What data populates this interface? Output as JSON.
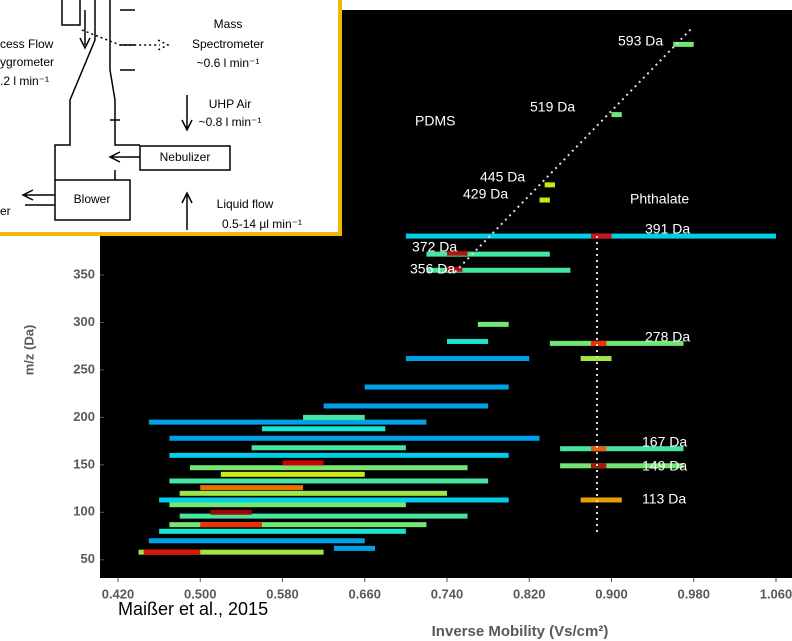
{
  "chart_data": {
    "type": "heatmap",
    "x_label": "Inverse Mobility (Vs/cm²)",
    "y_label": "m/z (Da)",
    "xlim": [
      0.42,
      1.06
    ],
    "xticks": [
      {
        "value": 0.42,
        "label": "0.420"
      },
      {
        "value": 0.5,
        "label": "0.500"
      },
      {
        "value": 0.58,
        "label": "0.580"
      },
      {
        "value": 0.66,
        "label": "0.660"
      },
      {
        "value": 0.74,
        "label": "0.740"
      },
      {
        "value": 0.82,
        "label": "0.820"
      },
      {
        "value": 0.9,
        "label": "0.900"
      },
      {
        "value": 0.98,
        "label": "0.980"
      },
      {
        "value": 1.06,
        "label": "1.060"
      }
    ],
    "ylim": [
      35,
      625
    ],
    "yticks": [
      50,
      100,
      150,
      200,
      250,
      300,
      350
    ],
    "streaks": [
      {
        "x0": 0.44,
        "x1": 0.62,
        "mz": 58,
        "intensity": 0.55
      },
      {
        "x0": 0.445,
        "x1": 0.5,
        "mz": 58,
        "intensity": 0.9
      },
      {
        "x0": 0.63,
        "x1": 0.67,
        "mz": 62,
        "intensity": 0.3
      },
      {
        "x0": 0.45,
        "x1": 0.66,
        "mz": 70,
        "intensity": 0.3
      },
      {
        "x0": 0.46,
        "x1": 0.7,
        "mz": 80,
        "intensity": 0.4
      },
      {
        "x0": 0.47,
        "x1": 0.72,
        "mz": 87,
        "intensity": 0.5
      },
      {
        "x0": 0.5,
        "x1": 0.56,
        "mz": 87,
        "intensity": 0.85
      },
      {
        "x0": 0.48,
        "x1": 0.76,
        "mz": 96,
        "intensity": 0.45
      },
      {
        "x0": 0.51,
        "x1": 0.55,
        "mz": 100,
        "intensity": 0.95
      },
      {
        "x0": 0.47,
        "x1": 0.7,
        "mz": 108,
        "intensity": 0.5
      },
      {
        "x0": 0.46,
        "x1": 0.8,
        "mz": 113,
        "intensity": 0.35
      },
      {
        "x0": 0.48,
        "x1": 0.74,
        "mz": 120,
        "intensity": 0.55
      },
      {
        "x0": 0.5,
        "x1": 0.6,
        "mz": 126,
        "intensity": 0.75
      },
      {
        "x0": 0.47,
        "x1": 0.78,
        "mz": 133,
        "intensity": 0.45
      },
      {
        "x0": 0.52,
        "x1": 0.66,
        "mz": 140,
        "intensity": 0.6
      },
      {
        "x0": 0.49,
        "x1": 0.76,
        "mz": 147,
        "intensity": 0.5
      },
      {
        "x0": 0.58,
        "x1": 0.62,
        "mz": 152,
        "intensity": 0.9
      },
      {
        "x0": 0.47,
        "x1": 0.8,
        "mz": 160,
        "intensity": 0.35
      },
      {
        "x0": 0.55,
        "x1": 0.7,
        "mz": 168,
        "intensity": 0.45
      },
      {
        "x0": 0.47,
        "x1": 0.83,
        "mz": 178,
        "intensity": 0.3
      },
      {
        "x0": 0.56,
        "x1": 0.68,
        "mz": 188,
        "intensity": 0.4
      },
      {
        "x0": 0.45,
        "x1": 0.72,
        "mz": 195,
        "intensity": 0.3
      },
      {
        "x0": 0.6,
        "x1": 0.66,
        "mz": 200,
        "intensity": 0.45
      },
      {
        "x0": 0.62,
        "x1": 0.78,
        "mz": 212,
        "intensity": 0.3
      },
      {
        "x0": 0.66,
        "x1": 0.8,
        "mz": 232,
        "intensity": 0.3
      },
      {
        "x0": 0.7,
        "x1": 0.82,
        "mz": 262,
        "intensity": 0.3
      },
      {
        "x0": 0.74,
        "x1": 0.78,
        "mz": 280,
        "intensity": 0.4
      },
      {
        "x0": 0.77,
        "x1": 0.8,
        "mz": 298,
        "intensity": 0.5
      },
      {
        "x0": 0.72,
        "x1": 0.86,
        "mz": 355,
        "intensity": 0.45
      },
      {
        "x0": 0.74,
        "x1": 0.755,
        "mz": 356,
        "intensity": 0.95
      },
      {
        "x0": 0.72,
        "x1": 0.84,
        "mz": 372,
        "intensity": 0.45
      },
      {
        "x0": 0.74,
        "x1": 0.76,
        "mz": 373,
        "intensity": 0.95
      },
      {
        "x0": 0.7,
        "x1": 1.06,
        "mz": 391,
        "intensity": 0.35
      },
      {
        "x0": 0.88,
        "x1": 0.9,
        "mz": 391,
        "intensity": 0.9
      },
      {
        "x0": 0.84,
        "x1": 0.97,
        "mz": 278,
        "intensity": 0.5
      },
      {
        "x0": 0.88,
        "x1": 0.895,
        "mz": 278,
        "intensity": 0.85
      },
      {
        "x0": 0.87,
        "x1": 0.9,
        "mz": 262,
        "intensity": 0.55
      },
      {
        "x0": 0.85,
        "x1": 0.97,
        "mz": 167,
        "intensity": 0.45
      },
      {
        "x0": 0.88,
        "x1": 0.895,
        "mz": 167,
        "intensity": 0.8
      },
      {
        "x0": 0.85,
        "x1": 0.97,
        "mz": 149,
        "intensity": 0.5
      },
      {
        "x0": 0.88,
        "x1": 0.895,
        "mz": 149,
        "intensity": 0.95
      },
      {
        "x0": 0.87,
        "x1": 0.91,
        "mz": 113,
        "intensity": 0.7
      },
      {
        "x0": 0.83,
        "x1": 0.84,
        "mz": 429,
        "intensity": 0.6
      },
      {
        "x0": 0.835,
        "x1": 0.845,
        "mz": 445,
        "intensity": 0.6
      },
      {
        "x0": 0.9,
        "x1": 0.91,
        "mz": 519,
        "intensity": 0.5
      },
      {
        "x0": 0.96,
        "x1": 0.98,
        "mz": 593,
        "intensity": 0.5
      }
    ],
    "annotations": [
      "593 Da",
      "519 Da",
      "PDMS",
      "445 Da",
      "429 Da",
      "Phthalate",
      "391 Da",
      "372 Da",
      "356 Da",
      "278 Da",
      "167 Da",
      "149 Da",
      "113 Da"
    ],
    "citation": "Maißer et al., 2015"
  },
  "inset": {
    "labels": [
      "Mass",
      "Spectrometer",
      "~0.6 l min⁻¹",
      "cess Flow",
      "ygrometer",
      ".2 l min⁻¹",
      "UHP Air",
      "~0.8 l min⁻¹",
      "Nebulizer",
      "Blower",
      "Liquid flow",
      "0.5-14 µl min⁻¹",
      "er"
    ]
  }
}
